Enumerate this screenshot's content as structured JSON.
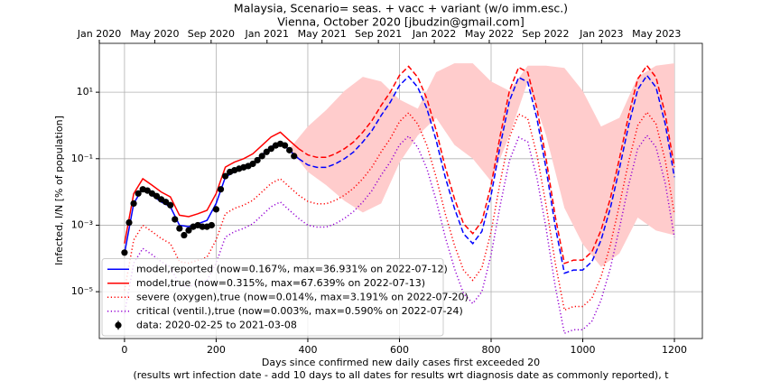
{
  "chart_data": {
    "type": "line",
    "title": [
      "Malaysia, Scenario= seas. + vacc + variant (w/o imm.esc.)",
      "Vienna, October 2020 [jbudzin@gmail.com]"
    ],
    "xlabel": [
      "Days since confirmed new daily cases first exceeded 20",
      "(results wrt infection date - add 10 days to all dates for results wrt diagnosis date as commonly reported), t"
    ],
    "ylabel": "Infected, I/N [% of population]",
    "yscale": "log",
    "grid": true,
    "legend": "lower left",
    "dash_after": 380,
    "xlim": [
      -55,
      1261
    ],
    "ylim": [
      3.9e-07,
      295
    ],
    "xticks": [
      0,
      200,
      400,
      600,
      800,
      1000,
      1200
    ],
    "x2ticks": [
      {
        "value": -55,
        "label": "Jan 2020"
      },
      {
        "value": 66,
        "label": "May 2020"
      },
      {
        "value": 189,
        "label": "Sep 2020"
      },
      {
        "value": 311,
        "label": "Jan 2021"
      },
      {
        "value": 431,
        "label": "May 2021"
      },
      {
        "value": 554,
        "label": "Sep 2021"
      },
      {
        "value": 676,
        "label": "Jan 2022"
      },
      {
        "value": 796,
        "label": "May 2022"
      },
      {
        "value": 919,
        "label": "Sep 2022"
      },
      {
        "value": 1041,
        "label": "Jan 2023"
      },
      {
        "value": 1161,
        "label": "May 2023"
      }
    ],
    "yticks": [
      {
        "value": 1e-05,
        "label": "10⁻⁵"
      },
      {
        "value": 0.001,
        "label": "10⁻³"
      },
      {
        "value": 0.1,
        "label": "10⁻¹"
      },
      {
        "value": 10,
        "label": "10¹"
      }
    ],
    "x": [
      0,
      20,
      40,
      60,
      80,
      100,
      120,
      140,
      160,
      180,
      200,
      220,
      240,
      260,
      280,
      300,
      320,
      340,
      360,
      380,
      400,
      420,
      440,
      460,
      480,
      500,
      520,
      540,
      560,
      580,
      600,
      620,
      640,
      660,
      680,
      700,
      720,
      740,
      760,
      780,
      800,
      820,
      840,
      860,
      880,
      900,
      920,
      940,
      960,
      980,
      1000,
      1020,
      1040,
      1060,
      1080,
      1100,
      1120,
      1140,
      1160,
      1180,
      1200
    ],
    "series": [
      {
        "name": "model,reported (now=0.167%, max=36.931% on 2022-07-12)",
        "color": "#0000ff",
        "linestyle": "solid",
        "values": [
          0.00014,
          0.0045,
          0.013,
          0.008,
          0.005,
          0.0036,
          0.001,
          0.0009,
          0.0011,
          0.0014,
          0.0045,
          0.028,
          0.04,
          0.05,
          0.07,
          0.13,
          0.23,
          0.32,
          0.18,
          0.1,
          0.065,
          0.055,
          0.055,
          0.07,
          0.1,
          0.16,
          0.32,
          0.7,
          2.0,
          5.0,
          16,
          30,
          14,
          3.2,
          0.36,
          0.028,
          0.0032,
          0.00055,
          0.00028,
          0.00065,
          0.008,
          0.25,
          5.5,
          28,
          20,
          1.6,
          0.05,
          0.0009,
          3.6e-05,
          4.5e-05,
          4.5e-05,
          8e-05,
          0.00036,
          0.0032,
          0.05,
          1.0,
          12,
          32,
          14,
          1.1,
          0.028
        ]
      },
      {
        "name": "model,true (now=0.315%, max=67.639% on 2022-07-13)",
        "color": "#ff0000",
        "linestyle": "solid",
        "values": [
          0.00028,
          0.0089,
          0.025,
          0.016,
          0.01,
          0.0071,
          0.002,
          0.0018,
          0.0022,
          0.0028,
          0.0089,
          0.056,
          0.079,
          0.1,
          0.14,
          0.25,
          0.45,
          0.63,
          0.35,
          0.2,
          0.13,
          0.11,
          0.11,
          0.14,
          0.2,
          0.32,
          0.63,
          1.4,
          4.0,
          10,
          32,
          60,
          28,
          6.3,
          0.71,
          0.056,
          0.0063,
          0.0011,
          0.00056,
          0.0013,
          0.016,
          0.5,
          11,
          56,
          40,
          3.2,
          0.1,
          0.0018,
          7.1e-05,
          8.9e-05,
          8.9e-05,
          0.00016,
          0.00071,
          0.0063,
          0.1,
          2.0,
          25,
          63,
          28,
          2.2,
          0.056
        ]
      },
      {
        "name": "severe (oxygen),true (now=0.014%, max=3.191% on 2022-07-20)",
        "color": "#ff0000",
        "linestyle": "dotted",
        "values": [
          1.1e-05,
          0.00036,
          0.001,
          0.00064,
          0.0004,
          0.00028,
          8e-05,
          7.2e-05,
          8.8e-05,
          0.00011,
          0.00036,
          0.0022,
          0.0032,
          0.004,
          0.0056,
          0.01,
          0.018,
          0.025,
          0.014,
          0.008,
          0.0052,
          0.0044,
          0.0044,
          0.0056,
          0.008,
          0.013,
          0.025,
          0.056,
          0.16,
          0.4,
          1.3,
          2.4,
          1.1,
          0.25,
          0.028,
          0.0022,
          0.00025,
          4.4e-05,
          2.2e-05,
          5.2e-05,
          0.00064,
          0.02,
          0.44,
          2.2,
          1.6,
          0.13,
          0.004,
          7.2e-05,
          2.8e-06,
          3.6e-06,
          3.6e-06,
          6.4e-06,
          2.8e-05,
          0.00025,
          0.004,
          0.08,
          1.0,
          2.5,
          1.1,
          0.088,
          0.0022
        ]
      },
      {
        "name": "critical (ventil.),true (now=0.003%, max=0.590% on 2022-07-24)",
        "color": "#9400d3",
        "linestyle": "dotted",
        "values": [
          2.2e-06,
          7.2e-05,
          0.0002,
          0.00013,
          8e-05,
          5.6e-05,
          1.6e-05,
          1.4e-05,
          1.8e-05,
          2.2e-05,
          7.2e-05,
          0.00044,
          0.00064,
          0.0008,
          0.0011,
          0.002,
          0.0036,
          0.005,
          0.0028,
          0.0016,
          0.001,
          0.00088,
          0.00088,
          0.0011,
          0.0016,
          0.0026,
          0.005,
          0.011,
          0.032,
          0.08,
          0.26,
          0.48,
          0.22,
          0.05,
          0.0056,
          0.00044,
          5e-05,
          8.8e-06,
          4.4e-06,
          1e-05,
          0.00013,
          0.004,
          0.088,
          0.44,
          0.32,
          0.026,
          0.0008,
          1.4e-05,
          5.6e-07,
          7.2e-07,
          7.2e-07,
          1.3e-06,
          5.6e-06,
          5e-05,
          0.0008,
          0.016,
          0.2,
          0.5,
          0.22,
          0.018,
          0.00044
        ]
      }
    ],
    "points": {
      "name": "data: 2020-02-25 to 2021-03-08",
      "color": "#000000",
      "x": [
        0,
        10,
        20,
        30,
        40,
        50,
        60,
        70,
        80,
        90,
        100,
        110,
        120,
        130,
        140,
        150,
        160,
        170,
        180,
        190,
        200,
        210,
        220,
        230,
        240,
        250,
        260,
        270,
        280,
        290,
        300,
        310,
        320,
        330,
        340,
        350,
        360,
        370
      ],
      "values": [
        0.00015,
        0.0012,
        0.0045,
        0.009,
        0.012,
        0.011,
        0.009,
        0.0075,
        0.006,
        0.005,
        0.004,
        0.0015,
        0.0008,
        0.0005,
        0.0007,
        0.0009,
        0.001,
        0.0009,
        0.0009,
        0.001,
        0.003,
        0.012,
        0.03,
        0.04,
        0.045,
        0.05,
        0.055,
        0.06,
        0.07,
        0.09,
        0.12,
        0.16,
        0.2,
        0.25,
        0.28,
        0.25,
        0.18,
        0.12
      ]
    },
    "band": {
      "color": "#ffcccc",
      "x": [
        360,
        400,
        440,
        480,
        520,
        560,
        600,
        640,
        680,
        720,
        760,
        800,
        840,
        880,
        920,
        960,
        1000,
        1040,
        1080,
        1120,
        1160,
        1200
      ],
      "upper": [
        0.2,
        0.93,
        2.9,
        11,
        29,
        21,
        6,
        3.2,
        40,
        74,
        74,
        21,
        11,
        63,
        63,
        54,
        11,
        0.93,
        1.7,
        29,
        63,
        74
      ],
      "lower": [
        0.2,
        0.04,
        0.016,
        0.0054,
        0.0024,
        0.0045,
        0.076,
        0.5,
        1.7,
        0.26,
        0.1,
        0.021,
        0.5,
        21,
        0.5,
        0.0033,
        0.00027,
        5.6e-05,
        0.00014,
        0.0017,
        0.00069,
        0.0005
      ]
    }
  }
}
